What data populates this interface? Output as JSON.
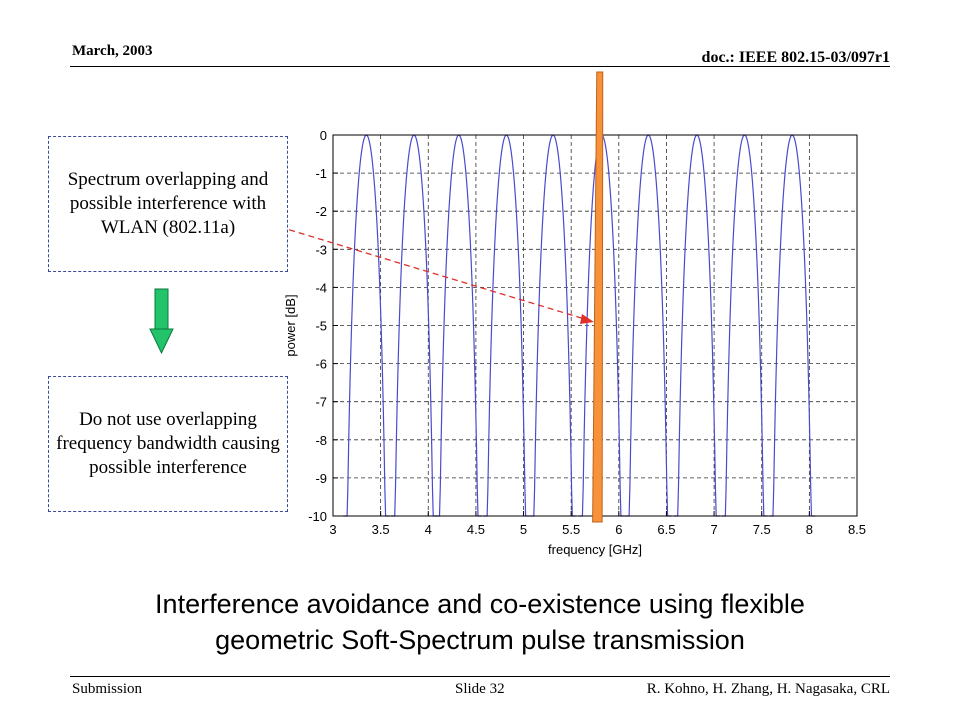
{
  "header": {
    "date": "March, 2003",
    "doc_id": "doc.: IEEE 802.15-03/097r1"
  },
  "footer": {
    "left": "Submission",
    "center": "Slide 32",
    "right": "R. Kohno, H. Zhang, H. Nagasaka, CRL"
  },
  "notes": {
    "top": "Spectrum overlapping and possible interference with WLAN (802.11a)",
    "bottom": "Do not use overlapping frequency bandwidth causing possible interference"
  },
  "caption": {
    "line1": "Interference avoidance and co-existence using flexible",
    "line2": "geometric Soft-Spectrum pulse transmission"
  },
  "colors": {
    "curve": "#4a4ad0",
    "band": "#f7923a",
    "arrow_green": "#22c36a",
    "pointer": "#e0302a",
    "note_border": "#3a4b9a"
  },
  "chart_data": {
    "type": "line",
    "xlabel": "frequency [GHz]",
    "ylabel": "power [dB]",
    "xlim": [
      3,
      8.5
    ],
    "ylim": [
      -10,
      0
    ],
    "xticks": [
      3,
      3.5,
      4,
      4.5,
      5,
      5.5,
      6,
      6.5,
      7,
      7.5,
      8,
      8.5
    ],
    "yticks": [
      0,
      -1,
      -2,
      -3,
      -4,
      -5,
      -6,
      -7,
      -8,
      -9,
      -10
    ],
    "grid": true,
    "series": [
      {
        "peak_centers": [
          3.35,
          3.85,
          4.32,
          4.82,
          5.31,
          5.82,
          6.31,
          6.82,
          7.32,
          7.82
        ],
        "peak_db": 0,
        "lobe_halfwidth_ghz": 0.25
      }
    ],
    "interference_band": {
      "x_start": 5.725,
      "x_end": 5.825,
      "x_peak": 5.8
    }
  }
}
